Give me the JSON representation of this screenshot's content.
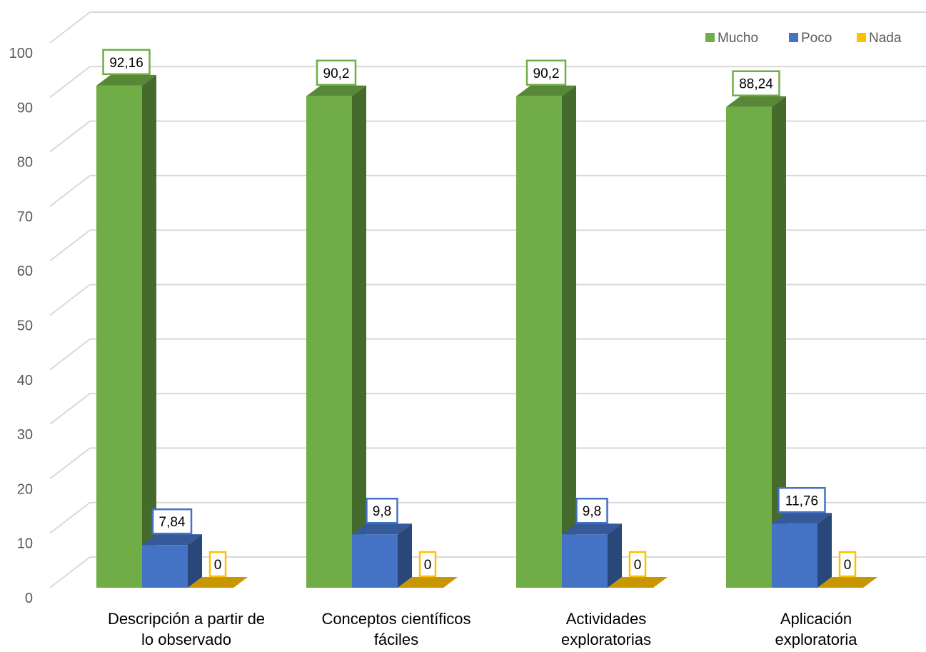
{
  "chart_data": {
    "type": "bar",
    "title": "",
    "xlabel": "",
    "ylabel": "",
    "ylim": [
      0,
      100
    ],
    "yticks": [
      0,
      10,
      20,
      30,
      40,
      50,
      60,
      70,
      80,
      90,
      100
    ],
    "grid": true,
    "legend_position": "top-right",
    "style": "3d-clustered-column",
    "categories": [
      [
        "Descripción a partir de",
        "lo observado"
      ],
      [
        "Conceptos científicos",
        "fáciles"
      ],
      [
        "Actividades",
        "exploratorias"
      ],
      [
        "Aplicación",
        "exploratoria"
      ]
    ],
    "series": [
      {
        "name": "Mucho",
        "color": "#70AD47",
        "values": [
          92.16,
          90.2,
          90.2,
          88.24
        ],
        "labels": [
          "92,16",
          "90,2",
          "90,2",
          "88,24"
        ]
      },
      {
        "name": "Poco",
        "color": "#4472C4",
        "values": [
          7.84,
          9.8,
          9.8,
          11.76
        ],
        "labels": [
          "7,84",
          "9,8",
          "9,8",
          "11,76"
        ]
      },
      {
        "name": "Nada",
        "color": "#FFC000",
        "values": [
          0,
          0,
          0,
          0
        ],
        "labels": [
          "0",
          "0",
          "0",
          "0"
        ]
      }
    ]
  }
}
